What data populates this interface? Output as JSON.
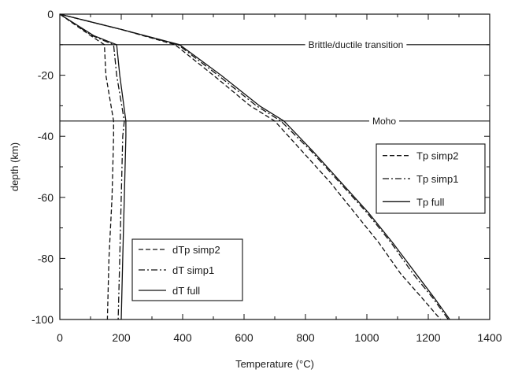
{
  "chart_data": {
    "type": "line",
    "xlabel": "Temperature (°C)",
    "ylabel": "depth (km)",
    "xlim": [
      0,
      1400
    ],
    "ylim": [
      -100,
      0
    ],
    "xticks": [
      0,
      200,
      400,
      600,
      800,
      1000,
      1200,
      1400
    ],
    "yticks": [
      0,
      -20,
      -40,
      -60,
      -80,
      -100
    ],
    "grid": false,
    "annotations": [
      {
        "text": "Brittle/ductile transition",
        "y": -10
      },
      {
        "text": "Moho",
        "y": -35
      }
    ],
    "legends": [
      {
        "placement": "right",
        "entries": [
          "Tp simp2",
          "Tp simp1",
          "Tp full"
        ]
      },
      {
        "placement": "bottom-left",
        "entries": [
          "dTp simp2",
          "dT simp1",
          "dT full"
        ]
      }
    ],
    "series": [
      {
        "name": "Tp simp2",
        "dash": "dashed",
        "points": [
          [
            0,
            0
          ],
          [
            200,
            -5
          ],
          [
            375,
            -10
          ],
          [
            500,
            -20
          ],
          [
            620,
            -30
          ],
          [
            700,
            -35
          ],
          [
            790,
            -45
          ],
          [
            880,
            -55
          ],
          [
            960,
            -65
          ],
          [
            1040,
            -75
          ],
          [
            1110,
            -85
          ],
          [
            1180,
            -93
          ],
          [
            1240,
            -100
          ]
        ]
      },
      {
        "name": "Tp simp1",
        "dash": "dashdot",
        "points": [
          [
            0,
            0
          ],
          [
            200,
            -5
          ],
          [
            385,
            -10
          ],
          [
            515,
            -20
          ],
          [
            640,
            -30
          ],
          [
            720,
            -35
          ],
          [
            820,
            -45
          ],
          [
            910,
            -55
          ],
          [
            1000,
            -65
          ],
          [
            1080,
            -75
          ],
          [
            1150,
            -85
          ],
          [
            1215,
            -93
          ],
          [
            1265,
            -100
          ]
        ]
      },
      {
        "name": "Tp full",
        "dash": "solid",
        "points": [
          [
            0,
            0
          ],
          [
            200,
            -5
          ],
          [
            390,
            -10
          ],
          [
            525,
            -20
          ],
          [
            650,
            -30
          ],
          [
            730,
            -35
          ],
          [
            825,
            -45
          ],
          [
            915,
            -55
          ],
          [
            1005,
            -65
          ],
          [
            1085,
            -75
          ],
          [
            1160,
            -85
          ],
          [
            1220,
            -93
          ],
          [
            1270,
            -100
          ]
        ]
      },
      {
        "name": "dTp simp2",
        "dash": "dashed",
        "points": [
          [
            0,
            0
          ],
          [
            100,
            -7
          ],
          [
            145,
            -10
          ],
          [
            150,
            -20
          ],
          [
            175,
            -35
          ],
          [
            175,
            -40
          ],
          [
            170,
            -60
          ],
          [
            160,
            -80
          ],
          [
            155,
            -100
          ]
        ]
      },
      {
        "name": "dT simp1",
        "dash": "dashdot",
        "points": [
          [
            0,
            0
          ],
          [
            105,
            -7
          ],
          [
            175,
            -10
          ],
          [
            185,
            -20
          ],
          [
            210,
            -35
          ],
          [
            205,
            -40
          ],
          [
            200,
            -60
          ],
          [
            195,
            -80
          ],
          [
            190,
            -100
          ]
        ]
      },
      {
        "name": "dT full",
        "dash": "solid",
        "points": [
          [
            0,
            0
          ],
          [
            110,
            -7
          ],
          [
            185,
            -10
          ],
          [
            195,
            -20
          ],
          [
            215,
            -35
          ],
          [
            215,
            -40
          ],
          [
            210,
            -60
          ],
          [
            205,
            -80
          ],
          [
            200,
            -100
          ]
        ]
      }
    ]
  }
}
